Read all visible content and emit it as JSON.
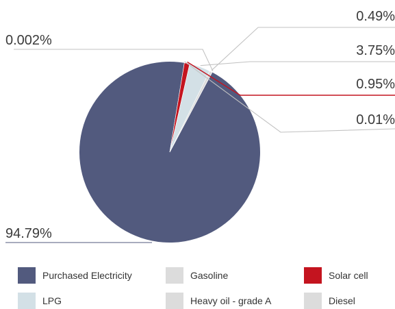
{
  "chart_data": {
    "type": "pie",
    "slices": [
      {
        "label": "Purchased Electricity",
        "value": 94.79,
        "display": "94.79%",
        "color": "#525a7e"
      },
      {
        "label": "Diesel",
        "value": 0.01,
        "display": "0.01%",
        "color": "#dcdcdc"
      },
      {
        "label": "Solar cell",
        "value": 0.95,
        "display": "0.95%",
        "color": "#c4141f"
      },
      {
        "label": "LPG",
        "value": 3.75,
        "display": "3.75%",
        "color": "#d3e0e6"
      },
      {
        "label": "Heavy oil - grade A",
        "value": 0.49,
        "display": "0.49%",
        "color": "#dcdcdc"
      },
      {
        "label": "Gasoline",
        "value": 0.002,
        "display": "0.002%",
        "color": "#dcdcdc"
      }
    ]
  },
  "legend": [
    {
      "label": "Purchased Electricity",
      "color": "#525a7e"
    },
    {
      "label": "Gasoline",
      "color": "#dcdcdc"
    },
    {
      "label": "Solar cell",
      "color": "#c4141f"
    },
    {
      "label": "LPG",
      "color": "#d3e0e6"
    },
    {
      "label": "Heavy oil - grade A",
      "color": "#dcdcdc"
    },
    {
      "label": "Diesel",
      "color": "#dcdcdc"
    }
  ],
  "leader_colors": {
    "default": "#c2c2c2",
    "electricity": "#525a7e",
    "solar": "#c4141f"
  }
}
